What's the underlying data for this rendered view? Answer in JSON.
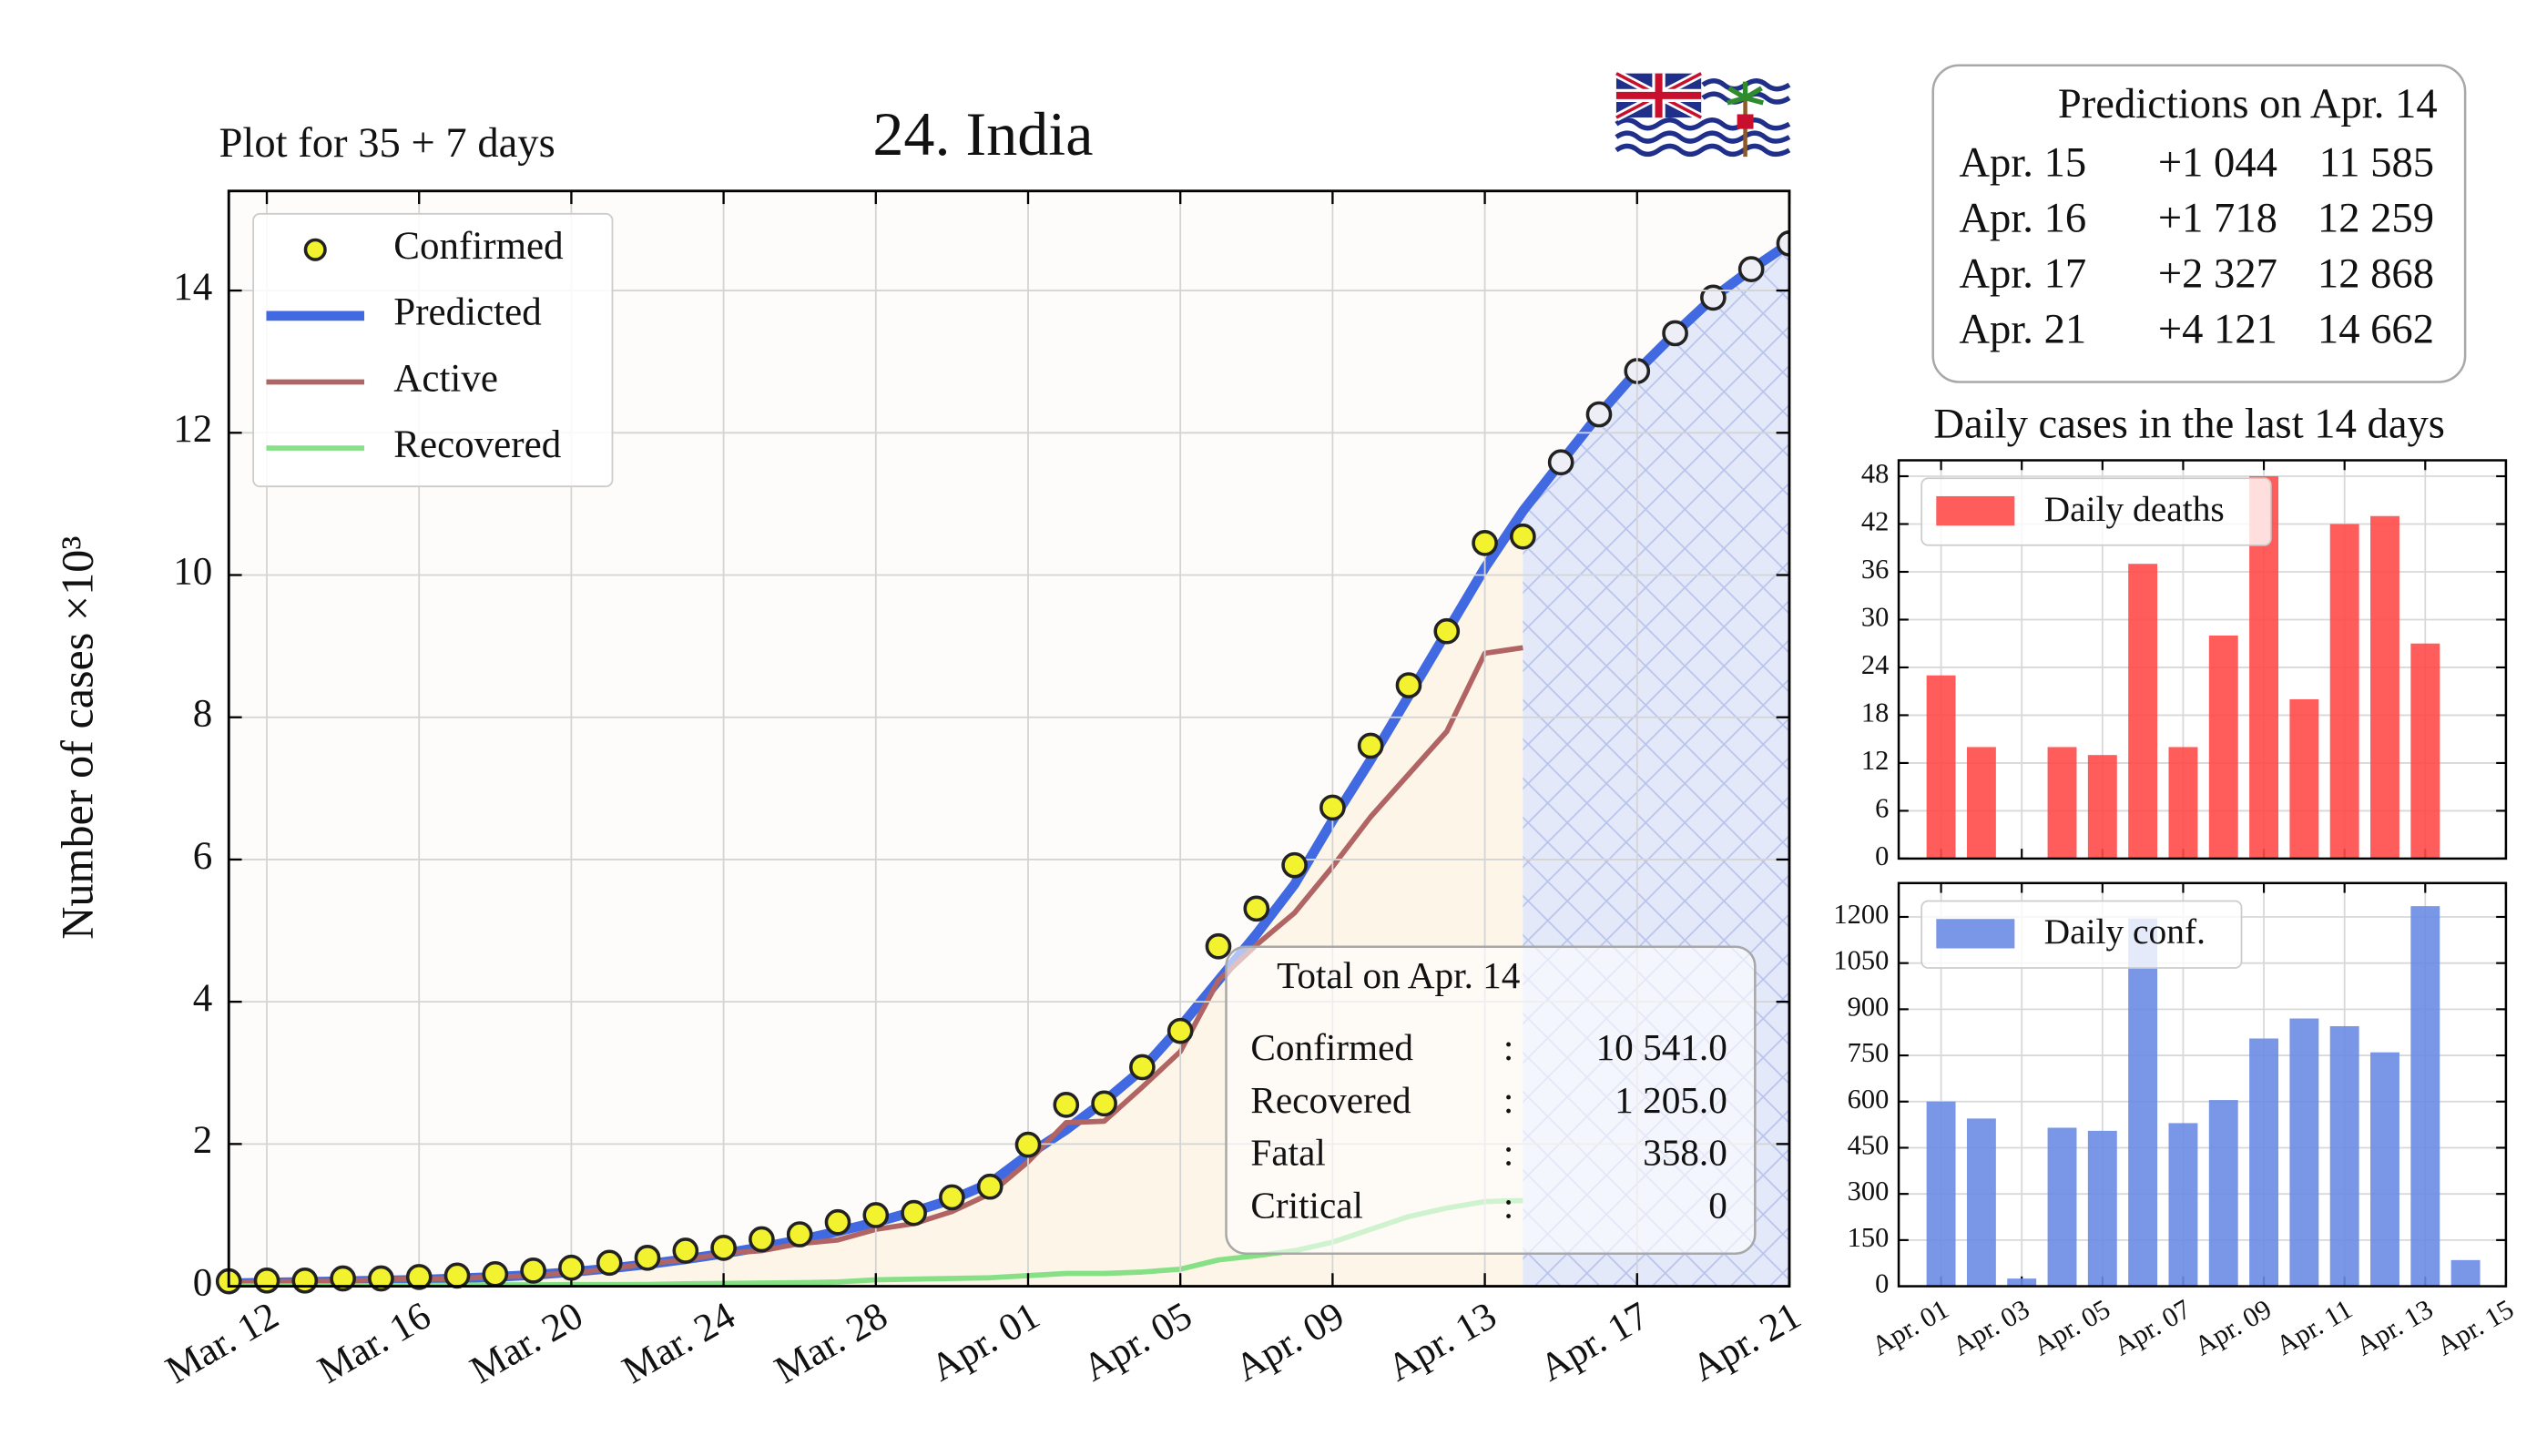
{
  "chart_data": [
    {
      "type": "line",
      "title": "24. India",
      "subtitle": "Plot for 35 + 7 days",
      "ylabel": "Number of cases ×10³",
      "categories": [
        null,
        "Mar. 12",
        null,
        null,
        null,
        "Mar. 16",
        null,
        null,
        null,
        "Mar. 20",
        null,
        null,
        null,
        "Mar. 24",
        null,
        null,
        null,
        "Mar. 28",
        null,
        null,
        null,
        "Apr. 01",
        null,
        null,
        null,
        "Apr. 05",
        null,
        null,
        null,
        "Apr. 09",
        null,
        null,
        null,
        "Apr. 13",
        null,
        null,
        null,
        "Apr. 17",
        null,
        null,
        null,
        "Apr. 21"
      ],
      "series": [
        {
          "name": "Confirmed",
          "mode": "markers",
          "color": "#f2f22e",
          "values": [
            0.07,
            0.08,
            0.08,
            0.11,
            0.11,
            0.13,
            0.15,
            0.17,
            0.22,
            0.26,
            0.33,
            0.4,
            0.5,
            0.54,
            0.66,
            0.73,
            0.9,
            1.0,
            1.03,
            1.25,
            1.4,
            1.99,
            2.55,
            2.57,
            3.08,
            3.59,
            4.78,
            5.31,
            5.92,
            6.73,
            7.6,
            8.45,
            9.21,
            10.45,
            10.541,
            null,
            null,
            null,
            null,
            null,
            null,
            null
          ]
        },
        {
          "name": "Predicted",
          "mode": "line",
          "color": "#4169e1",
          "values": [
            0.04,
            0.05,
            0.06,
            0.07,
            0.08,
            0.09,
            0.11,
            0.13,
            0.16,
            0.2,
            0.25,
            0.31,
            0.38,
            0.46,
            0.55,
            0.65,
            0.77,
            0.9,
            1.05,
            1.22,
            1.45,
            1.85,
            2.2,
            2.6,
            3.05,
            3.65,
            4.3,
            4.95,
            5.65,
            6.55,
            7.4,
            8.3,
            9.2,
            10.1,
            10.9,
            11.585,
            12.259,
            12.868,
            13.4,
            13.9,
            14.3,
            14.662
          ]
        },
        {
          "name": "Active",
          "mode": "line",
          "color": "#b06464",
          "values": [
            0.05,
            0.06,
            0.07,
            0.07,
            0.1,
            0.1,
            0.11,
            0.13,
            0.15,
            0.19,
            0.24,
            0.32,
            0.37,
            0.46,
            0.5,
            0.6,
            0.65,
            0.8,
            0.88,
            1.05,
            1.3,
            1.75,
            2.3,
            2.32,
            2.8,
            3.3,
            4.3,
            4.8,
            5.25,
            5.9,
            6.6,
            7.2,
            7.8,
            8.9,
            8.978,
            null,
            null,
            null,
            null,
            null,
            null,
            null
          ]
        },
        {
          "name": "Recovered",
          "mode": "line",
          "color": "#86e086",
          "values": [
            0.004,
            0.004,
            0.005,
            0.005,
            0.01,
            0.01,
            0.015,
            0.02,
            0.02,
            0.023,
            0.023,
            0.025,
            0.035,
            0.04,
            0.045,
            0.05,
            0.06,
            0.09,
            0.1,
            0.11,
            0.12,
            0.15,
            0.18,
            0.18,
            0.2,
            0.24,
            0.37,
            0.43,
            0.5,
            0.62,
            0.8,
            0.98,
            1.1,
            1.19,
            1.205,
            null,
            null,
            null,
            null,
            null,
            null,
            null
          ]
        }
      ],
      "ylim": [
        0,
        15.4
      ],
      "yticks": [
        0,
        2,
        4,
        6,
        8,
        10,
        12,
        14
      ],
      "grid": true,
      "legend": "upper left"
    },
    {
      "type": "bar",
      "title": "Daily cases in the last 14 days",
      "categories": [
        "Apr. 01",
        null,
        "Apr. 03",
        null,
        "Apr. 05",
        null,
        "Apr. 07",
        null,
        "Apr. 09",
        null,
        "Apr. 11",
        null,
        "Apr. 13",
        null,
        "Apr. 15"
      ],
      "series": [
        {
          "name": "Daily deaths",
          "color": "#ff4a4a",
          "values": [
            23,
            14,
            0,
            14,
            13,
            37,
            14,
            28,
            48,
            20,
            42,
            43,
            27,
            0,
            null
          ]
        }
      ],
      "ylim": [
        0,
        50
      ],
      "yticks": [
        0,
        6,
        12,
        18,
        24,
        30,
        36,
        42,
        48
      ],
      "grid": true,
      "legend": "upper left",
      "show_xticklabels": false
    },
    {
      "type": "bar",
      "categories": [
        "Apr. 01",
        null,
        "Apr. 03",
        null,
        "Apr. 05",
        null,
        "Apr. 07",
        null,
        "Apr. 09",
        null,
        "Apr. 11",
        null,
        "Apr. 13",
        null,
        "Apr. 15"
      ],
      "series": [
        {
          "name": "Daily conf.",
          "color": "#6c8ce4",
          "values": [
            600,
            545,
            25,
            515,
            505,
            1195,
            530,
            605,
            805,
            870,
            845,
            760,
            1235,
            85,
            null
          ]
        }
      ],
      "ylim": [
        0,
        1310
      ],
      "yticks": [
        0,
        150,
        300,
        450,
        600,
        750,
        900,
        1050,
        1200
      ],
      "grid": true,
      "legend": "upper left",
      "show_xticklabels": true
    }
  ],
  "total_box": {
    "title": "Total on Apr. 14",
    "rows": [
      [
        "Confirmed",
        ":",
        "10 541.0"
      ],
      [
        "Recovered",
        ":",
        "1 205.0"
      ],
      [
        "Fatal",
        ":",
        "358.0"
      ],
      [
        "Critical",
        ":",
        "0"
      ]
    ]
  },
  "predictions_box": {
    "title": "Predictions on Apr. 14",
    "rows": [
      [
        "Apr. 15",
        "+1 044",
        "11 585"
      ],
      [
        "Apr. 16",
        "+1 718",
        "12 259"
      ],
      [
        "Apr. 17",
        "+2 327",
        "12 868"
      ],
      [
        "Apr. 21",
        "+4 121",
        "14 662"
      ]
    ]
  }
}
